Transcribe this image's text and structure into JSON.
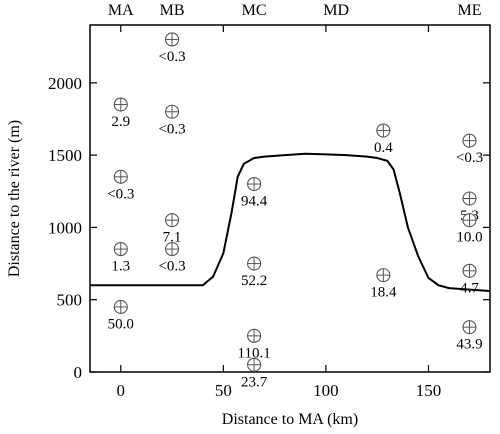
{
  "chart_data": {
    "type": "scatter",
    "xlabel": "Distance to MA (km)",
    "ylabel": "Distance to the river (m)",
    "xlim": [
      -15,
      180
    ],
    "ylim": [
      0,
      2400
    ],
    "x_ticks": [
      0,
      50,
      100,
      150
    ],
    "y_ticks": [
      0,
      500,
      1000,
      1500,
      2000
    ],
    "grid": false,
    "column_labels": [
      {
        "text": "MA",
        "x": 0
      },
      {
        "text": "MB",
        "x": 25
      },
      {
        "text": "MC",
        "x": 65
      },
      {
        "text": "MD",
        "x": 105
      },
      {
        "text": "ME",
        "x": 170
      }
    ],
    "points": [
      {
        "x": 0,
        "y": 1850,
        "label": "2.9"
      },
      {
        "x": 0,
        "y": 1350,
        "label": "<0.3"
      },
      {
        "x": 0,
        "y": 850,
        "label": "1.3"
      },
      {
        "x": 0,
        "y": 450,
        "label": "50.0"
      },
      {
        "x": 25,
        "y": 2300,
        "label": "<0.3"
      },
      {
        "x": 25,
        "y": 1800,
        "label": "<0.3"
      },
      {
        "x": 25,
        "y": 1050,
        "label": "7.1"
      },
      {
        "x": 25,
        "y": 850,
        "label": "<0.3"
      },
      {
        "x": 65,
        "y": 1300,
        "label": "94.4"
      },
      {
        "x": 65,
        "y": 750,
        "label": "52.2"
      },
      {
        "x": 65,
        "y": 250,
        "label": "110.1"
      },
      {
        "x": 65,
        "y": 50,
        "label": "23.7"
      },
      {
        "x": 128,
        "y": 1670,
        "label": "0.4"
      },
      {
        "x": 128,
        "y": 670,
        "label": "18.4"
      },
      {
        "x": 170,
        "y": 1600,
        "label": "<0.3"
      },
      {
        "x": 170,
        "y": 1200,
        "label": "5.3"
      },
      {
        "x": 170,
        "y": 1050,
        "label": "10.0"
      },
      {
        "x": 170,
        "y": 700,
        "label": "4.7"
      },
      {
        "x": 170,
        "y": 310,
        "label": "43.9"
      }
    ],
    "river_line": {
      "x": [
        -15,
        35,
        40,
        45,
        50,
        54,
        57,
        60,
        65,
        70,
        80,
        90,
        100,
        110,
        120,
        125,
        130,
        133,
        136,
        140,
        145,
        150,
        155,
        160,
        170,
        180
      ],
      "y": [
        600,
        600,
        600,
        660,
        820,
        1100,
        1350,
        1440,
        1480,
        1490,
        1500,
        1510,
        1505,
        1500,
        1490,
        1480,
        1460,
        1400,
        1240,
        1000,
        800,
        650,
        600,
        580,
        570,
        560
      ]
    }
  }
}
